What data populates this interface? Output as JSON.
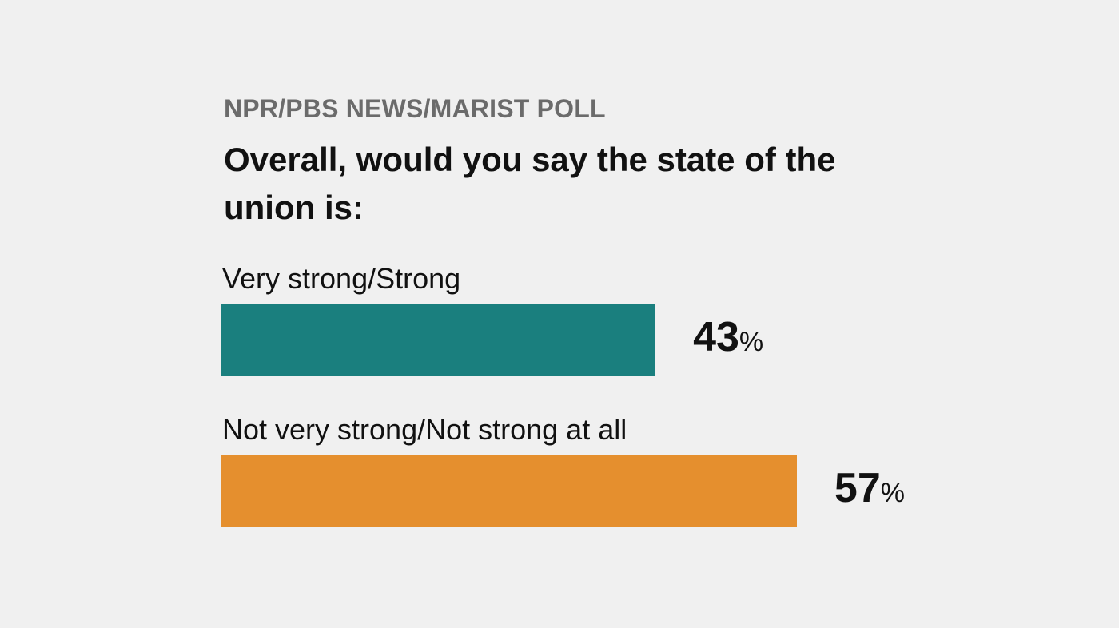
{
  "source": "NPR/PBS NEWS/MARIST POLL",
  "question": "Overall, would you say the state of the union is:",
  "chart_data": {
    "type": "bar",
    "orientation": "horizontal",
    "title": "Overall, would you say the state of the union is:",
    "categories": [
      "Very strong/Strong",
      "Not very strong/Not strong at all"
    ],
    "values": [
      43,
      57
    ],
    "unit": "%",
    "colors": [
      "#1a7f7e",
      "#e58f2e"
    ],
    "xlim": [
      0,
      100
    ],
    "grid": false
  }
}
